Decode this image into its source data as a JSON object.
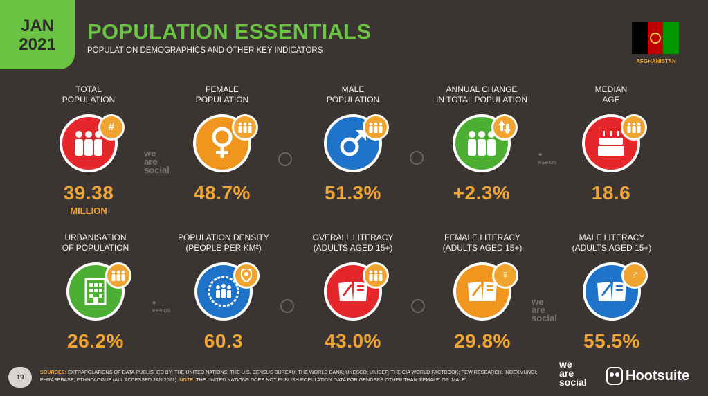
{
  "header": {
    "date_line1": "JAN",
    "date_line2": "2021",
    "title": "POPULATION ESSENTIALS",
    "subtitle": "POPULATION DEMOGRAPHICS AND OTHER KEY INDICATORS",
    "country": "AFGHANISTAN"
  },
  "flag_colors": [
    "#000000",
    "#be0000",
    "#009900"
  ],
  "stats_row1": [
    {
      "label1": "TOTAL",
      "label2": "POPULATION",
      "value": "39.38",
      "unit": "MILLION",
      "color": "red",
      "badge": "#",
      "icon": "people-icon"
    },
    {
      "label1": "FEMALE",
      "label2": "POPULATION",
      "value": "48.7%",
      "unit": "",
      "color": "orange",
      "badge": "people",
      "icon": "female-icon"
    },
    {
      "label1": "MALE",
      "label2": "POPULATION",
      "value": "51.3%",
      "unit": "",
      "color": "blue",
      "badge": "people",
      "icon": "male-icon"
    },
    {
      "label1": "ANNUAL CHANGE",
      "label2": "IN TOTAL POPULATION",
      "value": "+2.3%",
      "unit": "",
      "color": "green",
      "badge": "arrows",
      "icon": "people-icon"
    },
    {
      "label1": "MEDIAN",
      "label2": "AGE",
      "value": "18.6",
      "unit": "",
      "color": "red",
      "badge": "people",
      "icon": "cake-icon"
    }
  ],
  "stats_row2": [
    {
      "label1": "URBANISATION",
      "label2": "OF POPULATION",
      "value": "26.2%",
      "color": "green",
      "badge": "people",
      "icon": "building-icon"
    },
    {
      "label1": "POPULATION DENSITY",
      "label2": "(PEOPLE PER KM²)",
      "value": "60.3",
      "color": "blue",
      "badge": "pin",
      "icon": "crowd-icon"
    },
    {
      "label1": "OVERALL LITERACY",
      "label2": "(ADULTS AGED 15+)",
      "value": "43.0%",
      "color": "red",
      "badge": "people",
      "icon": "book-icon"
    },
    {
      "label1": "FEMALE LITERACY",
      "label2": "(ADULTS AGED 15+)",
      "value": "29.8%",
      "color": "orange",
      "badge": "♀",
      "icon": "book-icon"
    },
    {
      "label1": "MALE LITERACY",
      "label2": "(ADULTS AGED 15+)",
      "value": "55.5%",
      "color": "blue",
      "badge": "♂",
      "icon": "book-icon"
    }
  ],
  "deco": {
    "wearesocial1": "we are social",
    "kepios": "KEPIOS"
  },
  "footer": {
    "page": "19",
    "sources_label": "SOURCES:",
    "sources_text": "EXTRAPOLATIONS OF DATA PUBLISHED BY: THE UNITED NATIONS; THE U.S. CENSUS BUREAU; THE WORLD BANK; UNESCO; UNICEF; THE CIA WORLD FACTBOOK; PEW RESEARCH; INDEXMUNDI; PHRASEBASE; ETHNOLOGUE (ALL ACCESSED JAN 2021).",
    "note_label": "NOTE:",
    "note_text": "THE UNITED NATIONS DOES NOT PUBLISH POPULATION DATA FOR GENDERS OTHER THAN 'FEMALE' OR 'MALE'.",
    "brand1_line1": "we",
    "brand1_line2": "are",
    "brand1_line3": "social",
    "brand2": "Hootsuite"
  }
}
